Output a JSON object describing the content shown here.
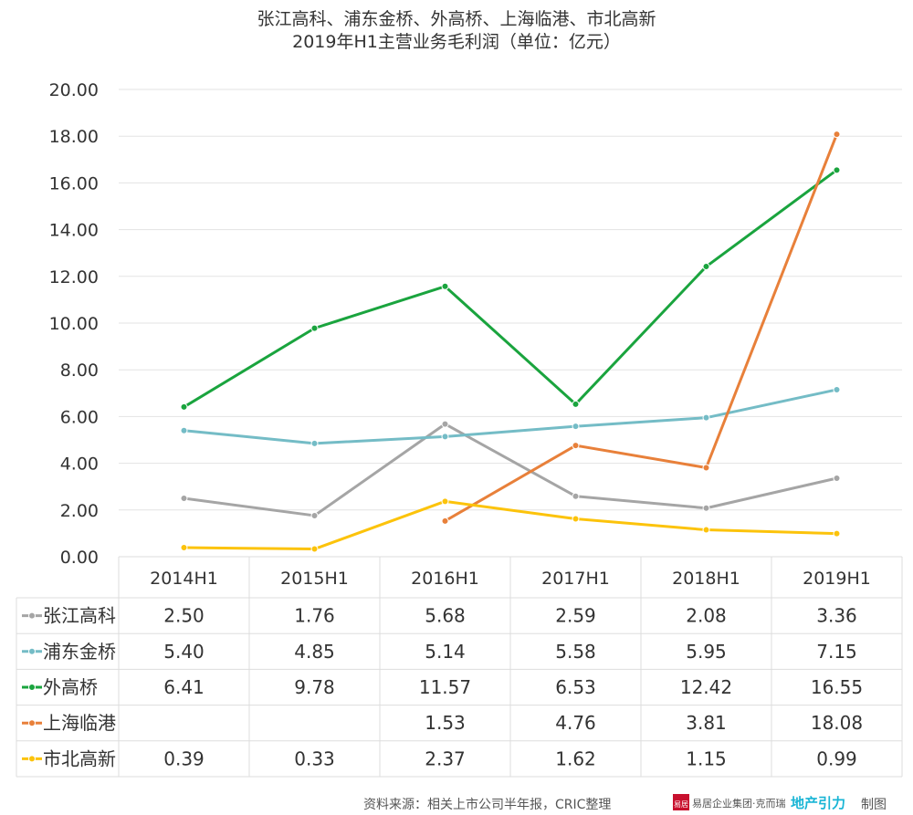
{
  "chart_data": {
    "type": "line",
    "title": "张江高科、浦东金桥、外高桥、上海临港、市北高新",
    "subtitle": "2019年H1主营业务毛利润（单位：亿元）",
    "categories": [
      "2014H1",
      "2015H1",
      "2016H1",
      "2017H1",
      "2018H1",
      "2019H1"
    ],
    "ylim": [
      0,
      20
    ],
    "yticks": [
      "0.00",
      "2.00",
      "4.00",
      "6.00",
      "8.00",
      "10.00",
      "12.00",
      "14.00",
      "16.00",
      "18.00",
      "20.00"
    ],
    "grid": true,
    "legend": "data-table",
    "series": [
      {
        "name": "张江高科",
        "color": "#a5a5a5",
        "values": [
          2.5,
          1.76,
          5.68,
          2.59,
          2.08,
          3.36
        ],
        "labels": [
          "2.50",
          "1.76",
          "5.68",
          "2.59",
          "2.08",
          "3.36"
        ]
      },
      {
        "name": "浦东金桥",
        "color": "#74bcc6",
        "values": [
          5.4,
          4.85,
          5.14,
          5.58,
          5.95,
          7.15
        ],
        "labels": [
          "5.40",
          "4.85",
          "5.14",
          "5.58",
          "5.95",
          "7.15"
        ]
      },
      {
        "name": "外高桥",
        "color": "#1aa43e",
        "values": [
          6.41,
          9.78,
          11.57,
          6.53,
          12.42,
          16.55
        ],
        "labels": [
          "6.41",
          "9.78",
          "11.57",
          "6.53",
          "12.42",
          "16.55"
        ]
      },
      {
        "name": "上海临港",
        "color": "#e8803a",
        "values": [
          null,
          null,
          1.53,
          4.76,
          3.81,
          18.08
        ],
        "labels": [
          "",
          "",
          "1.53",
          "4.76",
          "3.81",
          "18.08"
        ]
      },
      {
        "name": "市北高新",
        "color": "#fcc30b",
        "values": [
          0.39,
          0.33,
          2.37,
          1.62,
          1.15,
          0.99
        ],
        "labels": [
          "0.39",
          "0.33",
          "2.37",
          "1.62",
          "1.15",
          "0.99"
        ]
      }
    ]
  },
  "footer": {
    "source": "资料来源：相关上市公司半年报，CRIC整理",
    "logo_mark": "易居",
    "logo_text": "易居企业集团·克而瑞",
    "brand": "地产引力",
    "made_by": "制图"
  }
}
